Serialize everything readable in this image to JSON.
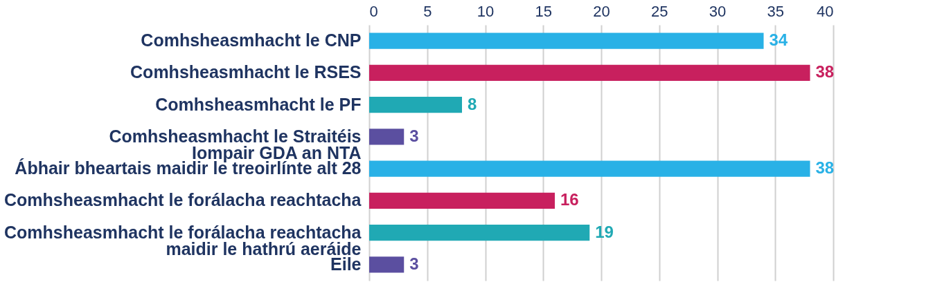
{
  "chart_data": {
    "type": "bar",
    "orientation": "horizontal",
    "categories": [
      "Comhsheasmhacht le CNP",
      "Comhsheasmhacht le RSES",
      "Comhsheasmhacht le PF",
      "Comhsheasmhacht le Straitéis\nIompair GDA an NTA",
      "Ábhair bheartais maidir le treoirlínte alt 28",
      "Comhsheasmhacht le forálacha reachtacha",
      "Comhsheasmhacht le forálacha reachtacha\nmaidir le hathrú aeráide",
      "Eile"
    ],
    "values": [
      34,
      38,
      8,
      3,
      38,
      16,
      19,
      3
    ],
    "colors": [
      "#29b1e6",
      "#c8205e",
      "#20a9b4",
      "#5b4fa0",
      "#29b1e6",
      "#c8205e",
      "#20a9b4",
      "#5b4fa0"
    ],
    "xlim": [
      0,
      40
    ],
    "xticks": [
      0,
      5,
      10,
      15,
      20,
      25,
      30,
      35,
      40
    ],
    "grid": "x",
    "data_labels": true
  }
}
